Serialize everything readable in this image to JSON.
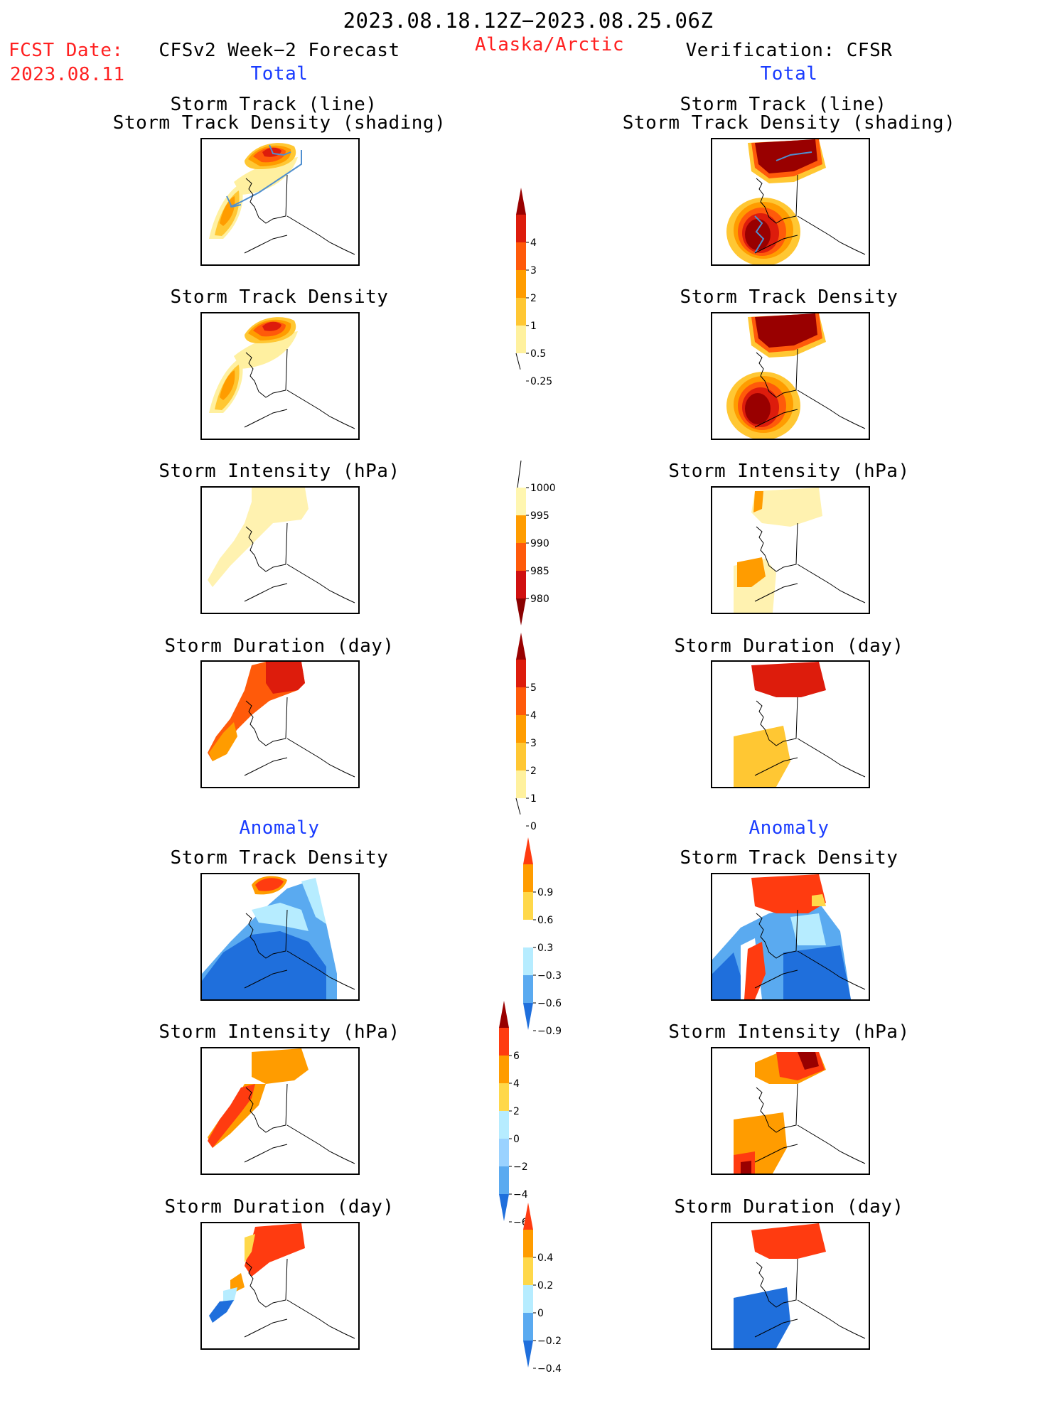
{
  "header": {
    "date_range": "2023.08.18.12Z−2023.08.25.06Z",
    "fcst_label": "FCST Date:",
    "fcst_date": "2023.08.11",
    "left_title": "CFSv2 Week−2 Forecast",
    "region": "Alaska/Arctic",
    "right_title": "Verification: CFSR",
    "left_total": "Total",
    "right_total": "Total"
  },
  "sections": {
    "anomaly_left": "Anomaly",
    "anomaly_right": "Anomaly"
  },
  "panel_titles": {
    "track_line": "Storm Track (line)",
    "track_shading": "Storm Track Density (shading)",
    "density": "Storm Track Density",
    "intensity": "Storm Intensity (hPa)",
    "duration": "Storm Duration (day)"
  },
  "colorbars": {
    "density_total": {
      "labels": [
        "4",
        "3",
        "2",
        "1",
        "0.5",
        "0.25"
      ],
      "colors": [
        "#990000",
        "#dd1c0c",
        "#ff5a0a",
        "#ff9c00",
        "#ffc733",
        "#fff19e"
      ]
    },
    "intensity_total": {
      "labels": [
        "1000",
        "995",
        "990",
        "985",
        "980"
      ],
      "colors": [
        "#fff6b0",
        "#ff9c00",
        "#ff5a0a",
        "#d01010",
        "#8a0000"
      ]
    },
    "duration_total": {
      "labels": [
        "5",
        "4",
        "3",
        "2",
        "1",
        "0"
      ],
      "colors": [
        "#990000",
        "#dd1c0c",
        "#ff5a0a",
        "#ff9c00",
        "#ffc733",
        "#fff19e"
      ]
    },
    "density_anom": {
      "labels": [
        "0.9",
        "0.6",
        "0.3",
        "−0.3",
        "−0.6",
        "−0.9"
      ],
      "colors": [
        "#ff3b10",
        "#ff9c00",
        "#ffd84a",
        "#ffffff",
        "#b6ecff",
        "#5aaaf0",
        "#1f6fdc"
      ]
    },
    "intensity_anom": {
      "labels": [
        "6",
        "4",
        "2",
        "0",
        "−2",
        "−4",
        "−6"
      ],
      "colors": [
        "#990000",
        "#ff3b10",
        "#ff9c00",
        "#ffd84a",
        "#b6ecff",
        "#9ad2ff",
        "#5aaaf0",
        "#1f6fdc"
      ]
    },
    "duration_anom": {
      "labels": [
        "0.4",
        "0.2",
        "0",
        "−0.2",
        "−0.4"
      ],
      "colors": [
        "#ff3b10",
        "#ff9c00",
        "#ffd84a",
        "#b6ecff",
        "#5aaaf0",
        "#1f6fdc"
      ]
    }
  },
  "colors": {
    "forecast_red": "#ff2020",
    "section_blue": "#1a3cff",
    "track_line": "#4f8fd0"
  }
}
